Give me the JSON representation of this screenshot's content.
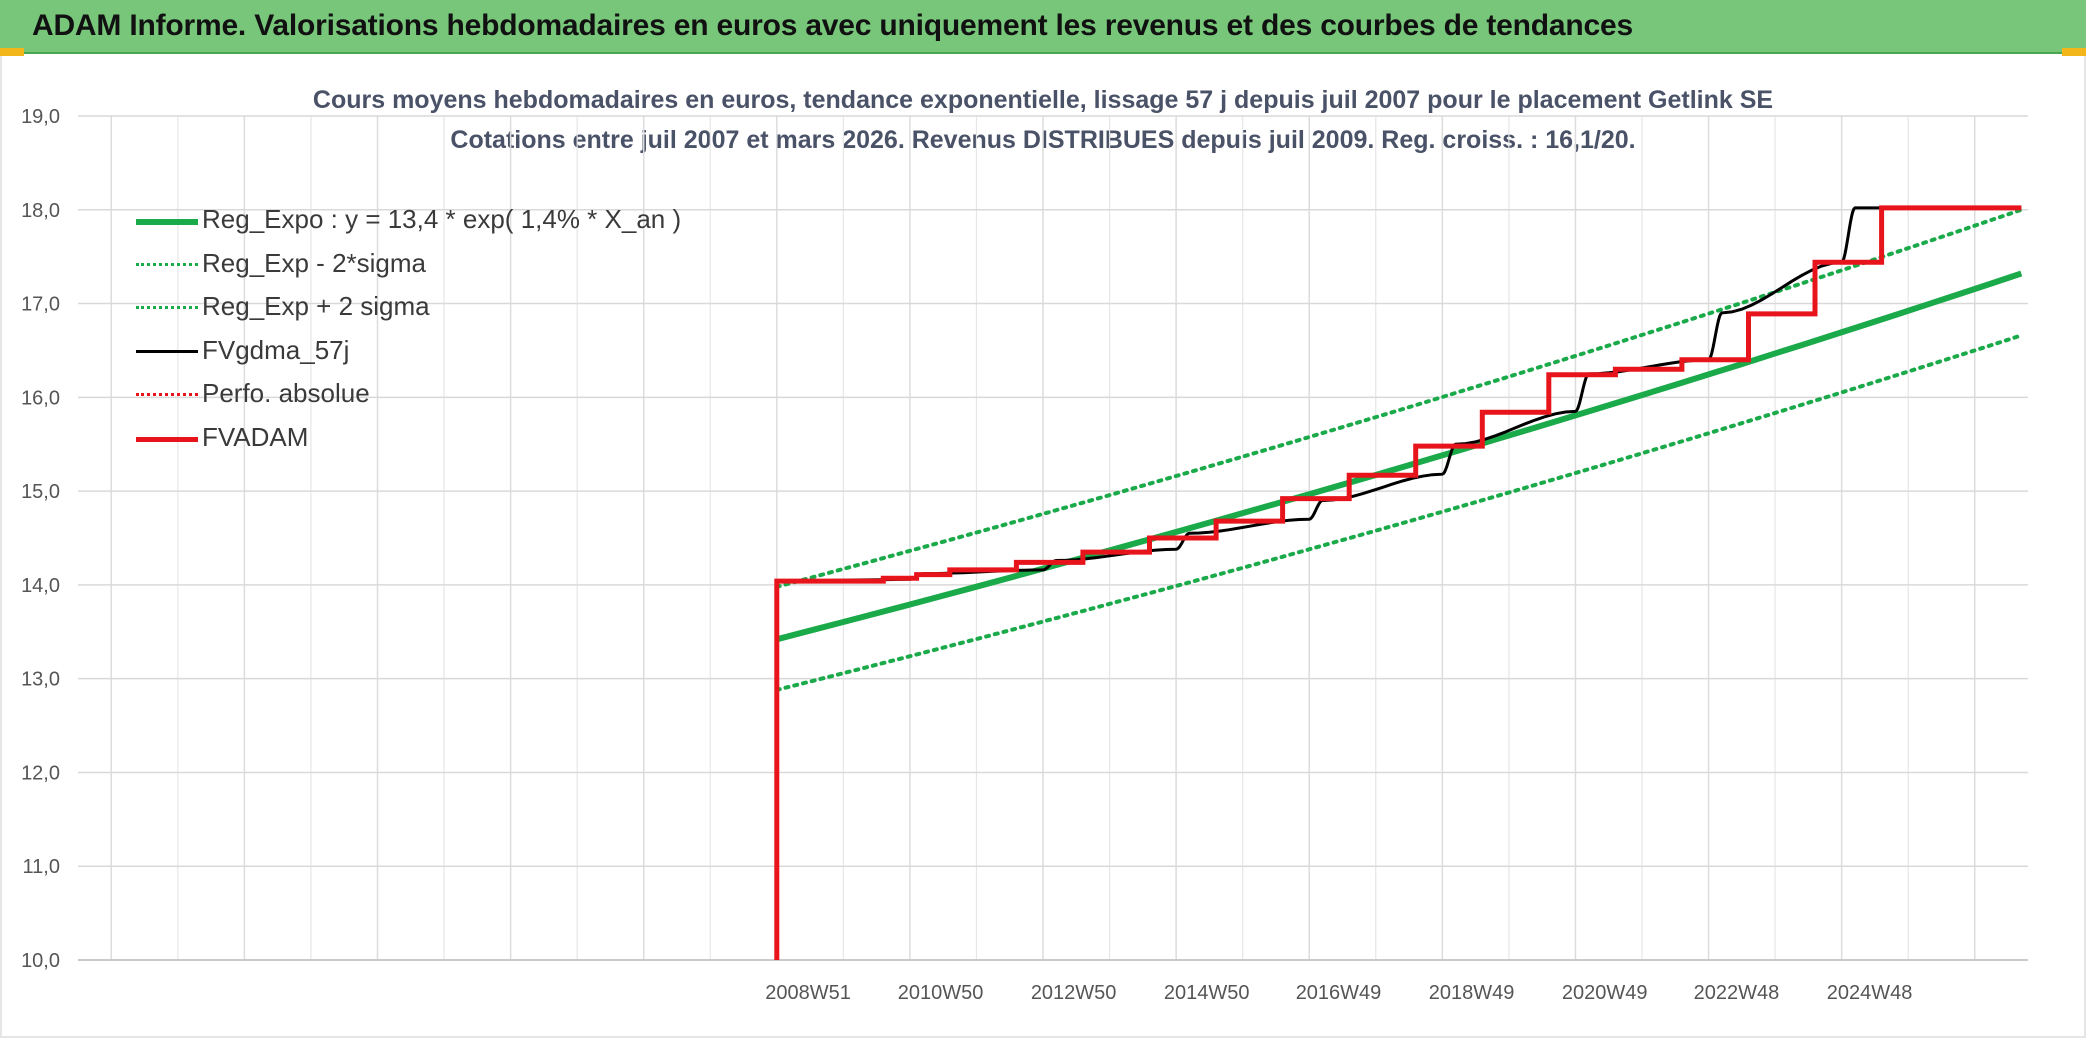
{
  "banner": {
    "title": "ADAM Informe. Valorisations hebdomadaires en euros avec uniquement les revenus et des courbes de tendances"
  },
  "chart_data": {
    "type": "line",
    "title": "Cours moyens hebdomadaires en euros, tendance exponentielle, lissage 57 j depuis juil 2007 pour le placement Getlink SE",
    "subtitle": "Cotations entre juil 2007 et mars 2026. Revenus DISTRIBUES depuis juil 2009. Reg. croiss. : 16,1/20.",
    "xlabel": "",
    "ylabel": "",
    "ylim": [
      10,
      19
    ],
    "yticks": [
      "10,0",
      "11,0",
      "12,0",
      "13,0",
      "14,0",
      "15,0",
      "16,0",
      "17,0",
      "18,0",
      "19,0"
    ],
    "xlim": [
      1998.0,
      2027.3
    ],
    "xticks": [
      {
        "label": "2008W51",
        "x": 2008.97
      },
      {
        "label": "2010W50",
        "x": 2010.96
      },
      {
        "label": "2012W50",
        "x": 2012.96
      },
      {
        "label": "2014W50",
        "x": 2014.96
      },
      {
        "label": "2016W49",
        "x": 2016.94
      },
      {
        "label": "2018W49",
        "x": 2018.94
      },
      {
        "label": "2020W49",
        "x": 2020.94
      },
      {
        "label": "2022W48",
        "x": 2022.92
      },
      {
        "label": "2024W48",
        "x": 2024.92
      }
    ],
    "grid": true,
    "legend_position": "top-left",
    "series": [
      {
        "name": "Reg_Expo : y = 13,4 * exp( 1,4% *  X_an )",
        "color": "#1aaa4a",
        "style": "solid-thick",
        "x": [
          2008.5,
          2027.2
        ],
        "y": [
          13.42,
          17.32
        ]
      },
      {
        "name": "Reg_Exp - 2*sigma",
        "color": "#1aaa4a",
        "style": "dotted",
        "x": [
          2008.5,
          2027.2
        ],
        "y": [
          12.88,
          16.66
        ]
      },
      {
        "name": "Reg_Exp + 2 sigma",
        "color": "#1aaa4a",
        "style": "dotted",
        "x": [
          2008.5,
          2027.2
        ],
        "y": [
          13.98,
          18.0
        ]
      },
      {
        "name": "FVgdma_57j",
        "color": "#000000",
        "style": "solid",
        "x": [
          2008.5,
          2010.5,
          2010.7,
          2012.5,
          2012.7,
          2014.5,
          2014.7,
          2016.5,
          2016.7,
          2018.5,
          2018.7,
          2020.5,
          2020.7,
          2022.5,
          2022.7,
          2024.5,
          2024.7,
          2027.2
        ],
        "y": [
          14.04,
          14.06,
          14.12,
          14.16,
          14.26,
          14.38,
          14.55,
          14.7,
          14.9,
          15.18,
          15.5,
          15.85,
          16.25,
          16.4,
          16.9,
          17.44,
          18.02,
          18.02
        ]
      },
      {
        "name": "Perfo. absolue",
        "color": "#e8141b",
        "style": "dotted",
        "x": [],
        "y": []
      },
      {
        "name": "FVADAM",
        "color": "#e8141b",
        "style": "step-thick",
        "x": [
          2008.5,
          2008.5,
          2010.1,
          2010.6,
          2011.1,
          2012.1,
          2013.1,
          2014.1,
          2015.1,
          2016.1,
          2017.1,
          2018.1,
          2019.1,
          2020.1,
          2021.1,
          2022.1,
          2023.1,
          2024.1,
          2025.1,
          2027.2
        ],
        "y": [
          10.0,
          14.04,
          14.07,
          14.11,
          14.16,
          14.24,
          14.35,
          14.5,
          14.68,
          14.92,
          15.17,
          15.48,
          15.84,
          16.24,
          16.3,
          16.4,
          16.89,
          17.44,
          18.02,
          18.02
        ]
      }
    ]
  }
}
